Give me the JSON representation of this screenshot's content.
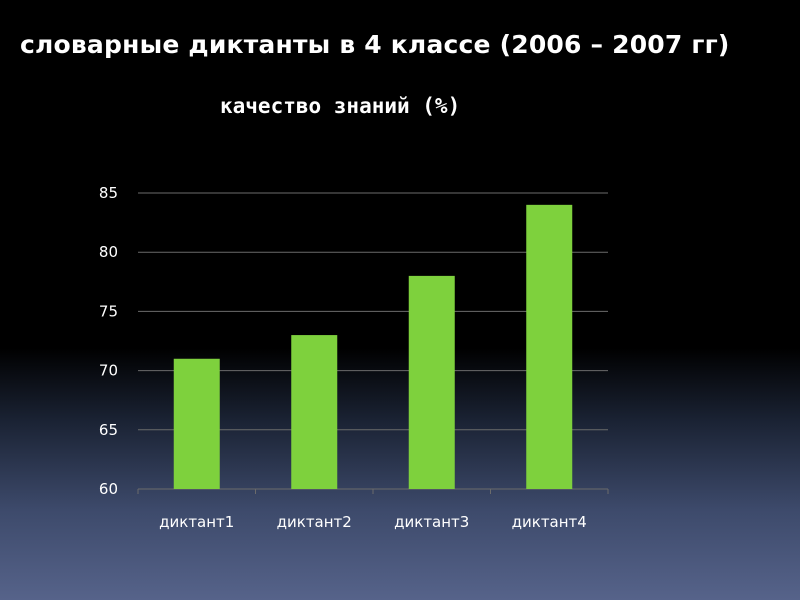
{
  "title": "словарные диктанты в 4 классе (2006 – 2007 гг)",
  "subtitle": "качество знаний (%)",
  "colors": {
    "bar": "#7ed13d",
    "grid": "#6b6b6b",
    "text": "#ffffff"
  },
  "chart_data": {
    "type": "bar",
    "categories": [
      "диктант1",
      "диктант2",
      "диктант3",
      "диктант4"
    ],
    "values": [
      71,
      73,
      78,
      84
    ],
    "yticks": [
      60,
      65,
      70,
      75,
      80,
      85
    ],
    "ylim": [
      60,
      85
    ],
    "grid": true,
    "legend": false
  }
}
